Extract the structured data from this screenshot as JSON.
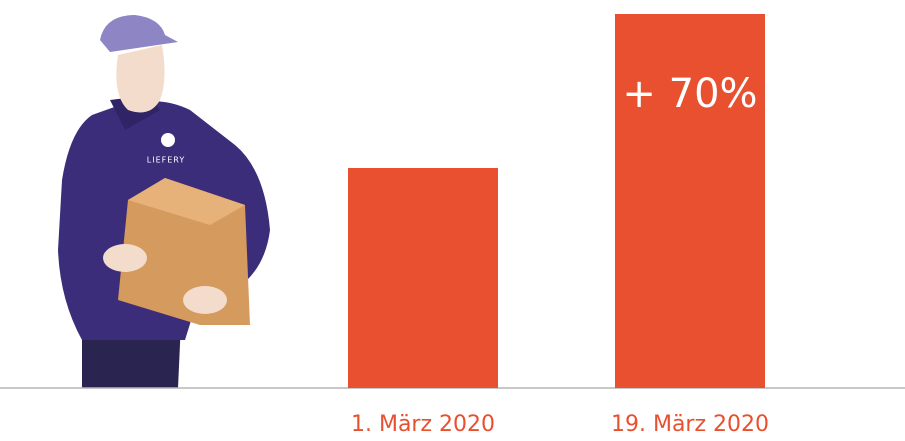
{
  "chart_data": {
    "type": "bar",
    "categories": [
      "1. März 2020",
      "19. März 2020"
    ],
    "values": [
      100,
      170
    ],
    "color": "#e8502f",
    "ylim": [
      0,
      170
    ],
    "annotation": "+ 70%",
    "logo": "LIEFERY"
  }
}
